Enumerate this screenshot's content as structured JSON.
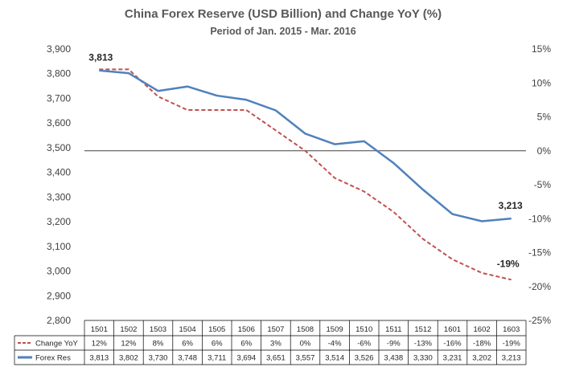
{
  "chart_data": {
    "type": "line",
    "title": "China Forex Reserve (USD Billion) and Change YoY (%)",
    "subtitle": "Period of Jan. 2015 - Mar. 2016",
    "categories": [
      "1501",
      "1502",
      "1503",
      "1504",
      "1505",
      "1506",
      "1507",
      "1508",
      "1509",
      "1510",
      "1511",
      "1512",
      "1601",
      "1602",
      "1603"
    ],
    "series": [
      {
        "name": "Change YoY",
        "axis": "right",
        "style": "dashed",
        "color": "#c0504d",
        "values": [
          12,
          12,
          8,
          6,
          6,
          6,
          3,
          0,
          -4,
          -6,
          -9,
          -13,
          -16,
          -18,
          -19
        ],
        "labels": [
          "12%",
          "12%",
          "8%",
          "6%",
          "6%",
          "6%",
          "3%",
          "0%",
          "-4%",
          "-6%",
          "-9%",
          "-13%",
          "-16%",
          "-18%",
          "-19%"
        ]
      },
      {
        "name": "Forex Res",
        "axis": "left",
        "style": "solid",
        "color": "#4f81bd",
        "values": [
          3813,
          3802,
          3730,
          3748,
          3711,
          3694,
          3651,
          3557,
          3514,
          3526,
          3438,
          3330,
          3231,
          3202,
          3213
        ],
        "labels": [
          "3,813",
          "3,802",
          "3,730",
          "3,748",
          "3,711",
          "3,694",
          "3,651",
          "3,557",
          "3,514",
          "3,526",
          "3,438",
          "3,330",
          "3,231",
          "3,202",
          "3,213"
        ]
      }
    ],
    "left_axis": {
      "min": 2800,
      "max": 3900,
      "ticks": [
        "2,800",
        "2,900",
        "3,000",
        "3,100",
        "3,200",
        "3,300",
        "3,400",
        "3,500",
        "3,600",
        "3,700",
        "3,800",
        "3,900"
      ]
    },
    "right_axis": {
      "min": -25,
      "max": 15,
      "ticks": [
        "-25%",
        "-20%",
        "-15%",
        "-10%",
        "-5%",
        "0%",
        "5%",
        "10%",
        "15%"
      ]
    },
    "annotations": [
      {
        "text": "3,813",
        "series": "Forex Res",
        "index": 0
      },
      {
        "text": "3,213",
        "series": "Forex Res",
        "index": 14
      },
      {
        "text": "-19%",
        "series": "Change YoY",
        "index": 14
      }
    ],
    "legend": "data-table-below",
    "grid": false
  }
}
